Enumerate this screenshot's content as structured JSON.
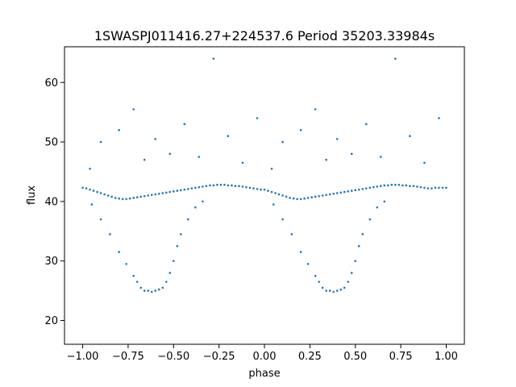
{
  "chart_data": {
    "type": "scatter",
    "title": "1SWASPJ011416.27+224537.6 Period 35203.33984s",
    "xlabel": "phase",
    "ylabel": "flux",
    "xlim": [
      -1.1,
      1.1
    ],
    "ylim": [
      16,
      66
    ],
    "grid": false,
    "point_color": "#1f77b4",
    "x_ticks": [
      -1.0,
      -0.75,
      -0.5,
      -0.25,
      0.0,
      0.25,
      0.5,
      0.75,
      1.0
    ],
    "x_tick_labels": [
      "−1.00",
      "−0.75",
      "−0.50",
      "−0.25",
      "0.00",
      "0.25",
      "0.50",
      "0.75",
      "1.00"
    ],
    "y_ticks": [
      20,
      30,
      40,
      50,
      60
    ],
    "y_tick_labels": [
      "20",
      "30",
      "40",
      "50",
      "60"
    ],
    "series": [
      {
        "x": [
          -1.0,
          -0.98,
          -0.96,
          -0.94,
          -0.92,
          -0.9,
          -0.88,
          -0.86,
          -0.84,
          -0.82,
          -0.8,
          -0.78,
          -0.76,
          -0.74,
          -0.72,
          -0.7,
          -0.68,
          -0.66,
          -0.64,
          -0.62,
          -0.6,
          -0.58,
          -0.56,
          -0.54,
          -0.52,
          -0.5,
          -0.48,
          -0.46,
          -0.44,
          -0.42,
          -0.4,
          -0.38,
          -0.36,
          -0.34,
          -0.32,
          -0.3,
          -0.28,
          -0.26,
          -0.24,
          -0.22,
          -0.2,
          -0.18,
          -0.16,
          -0.14,
          -0.12,
          -0.1,
          -0.08,
          -0.06,
          -0.04,
          -0.02,
          0.0,
          0.02,
          0.04,
          0.06,
          0.08,
          0.1,
          0.12,
          0.14,
          0.16,
          0.18,
          0.2,
          0.22,
          0.24,
          0.26,
          0.28,
          0.3,
          0.32,
          0.34,
          0.36,
          0.38,
          0.4,
          0.42,
          0.44,
          0.46,
          0.48,
          0.5,
          0.52,
          0.54,
          0.56,
          0.58,
          0.6,
          0.62,
          0.64,
          0.66,
          0.68,
          0.7,
          0.72,
          0.74,
          0.76,
          0.78,
          0.8,
          0.82,
          0.84,
          0.86,
          0.88,
          0.9,
          0.92,
          0.94,
          0.96,
          0.98,
          1.0
        ],
        "y": [
          42.3,
          42.2,
          42.0,
          41.8,
          41.6,
          41.4,
          41.2,
          41.0,
          40.8,
          40.6,
          40.5,
          40.4,
          40.4,
          40.5,
          40.6,
          40.7,
          40.8,
          40.9,
          41.0,
          41.1,
          41.2,
          41.3,
          41.4,
          41.5,
          41.6,
          41.7,
          41.8,
          41.9,
          42.0,
          42.1,
          42.2,
          42.3,
          42.4,
          42.5,
          42.6,
          42.7,
          42.7,
          42.8,
          42.8,
          42.8,
          42.7,
          42.7,
          42.6,
          42.6,
          42.5,
          42.4,
          42.3,
          42.2,
          42.1,
          42.0,
          42.0,
          41.8,
          41.6,
          41.4,
          41.2,
          41.0,
          40.8,
          40.6,
          40.5,
          40.4,
          40.4,
          40.5,
          40.6,
          40.7,
          40.8,
          40.9,
          41.0,
          41.1,
          41.2,
          41.3,
          41.4,
          41.5,
          41.6,
          41.7,
          41.8,
          41.9,
          42.0,
          42.1,
          42.2,
          42.3,
          42.4,
          42.5,
          42.6,
          42.7,
          42.7,
          42.8,
          42.8,
          42.8,
          42.7,
          42.7,
          42.6,
          42.6,
          42.5,
          42.4,
          42.3,
          42.2,
          42.2,
          42.3,
          42.3,
          42.3,
          42.3
        ]
      },
      {
        "x": [
          -0.95,
          -0.9,
          -0.85,
          -0.8,
          -0.76,
          -0.72,
          -0.7,
          -0.68,
          -0.66,
          -0.64,
          -0.62,
          -0.6,
          -0.58,
          -0.56,
          -0.54,
          -0.52,
          -0.5,
          -0.48,
          -0.46,
          -0.42,
          -0.38,
          -0.34,
          0.05,
          0.1,
          0.15,
          0.2,
          0.24,
          0.28,
          0.3,
          0.32,
          0.34,
          0.36,
          0.38,
          0.4,
          0.42,
          0.44,
          0.46,
          0.48,
          0.5,
          0.52,
          0.54,
          0.58,
          0.62,
          0.66
        ],
        "y": [
          39.5,
          37.0,
          34.5,
          31.5,
          29.5,
          27.5,
          26.5,
          25.5,
          25.0,
          25.0,
          24.8,
          25.0,
          25.2,
          25.5,
          26.5,
          28.0,
          30.0,
          32.5,
          34.5,
          37.0,
          39.0,
          40.0,
          39.5,
          37.0,
          34.5,
          31.5,
          29.5,
          27.5,
          26.5,
          25.5,
          25.0,
          25.0,
          24.8,
          25.0,
          25.2,
          25.5,
          26.5,
          28.0,
          30.0,
          32.5,
          34.5,
          37.0,
          39.0,
          40.0
        ]
      },
      {
        "x": [
          -0.96,
          -0.9,
          -0.8,
          -0.72,
          -0.66,
          -0.6,
          -0.52,
          -0.44,
          -0.36,
          -0.28,
          -0.2,
          -0.12,
          -0.04,
          0.04,
          0.1,
          0.2,
          0.28,
          0.34,
          0.4,
          0.48,
          0.56,
          0.64,
          0.72,
          0.8,
          0.88,
          0.96
        ],
        "y": [
          45.5,
          50.0,
          52.0,
          55.5,
          47.0,
          50.5,
          48.0,
          53.0,
          47.5,
          64.0,
          51.0,
          46.5,
          54.0,
          45.5,
          50.0,
          52.0,
          55.5,
          47.0,
          50.5,
          48.0,
          53.0,
          47.5,
          64.0,
          51.0,
          46.5,
          54.0
        ]
      }
    ]
  }
}
